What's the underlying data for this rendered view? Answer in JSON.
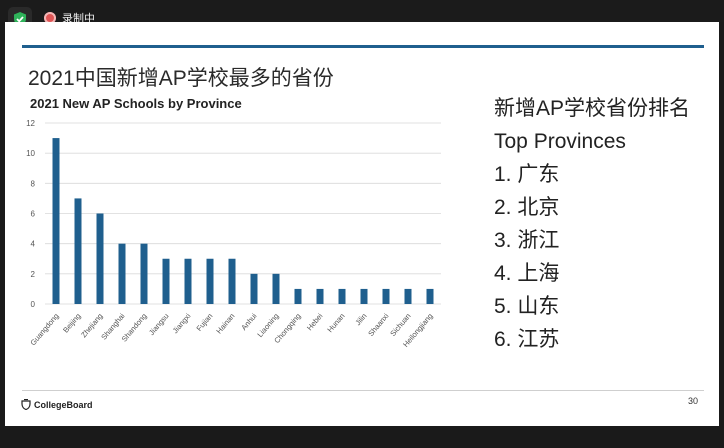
{
  "recording": {
    "label": "录制中"
  },
  "slide": {
    "title": "2021中国新增AP学校最多的省份",
    "page_number": "30",
    "logo_text": "CollegeBoard",
    "right_panel": {
      "heading_cn": "新增AP学校省份排名",
      "heading_en": "Top Provinces",
      "items": [
        "1. 广东",
        "2. 北京",
        "3. 浙江",
        "4. 上海",
        "5. 山东",
        "6. 江苏"
      ]
    }
  },
  "chart_data": {
    "type": "bar",
    "title": "2021 New AP Schools by Province",
    "categories": [
      "Guangdong",
      "Beijing",
      "Zhejiang",
      "Shanghai",
      "Shandong",
      "Jiangsu",
      "Jiangxi",
      "Fujian",
      "Hainan",
      "Anhui",
      "Liaoning",
      "Chongqing",
      "Hebei",
      "Hunan",
      "Jilin",
      "Shaanxi",
      "Sichuan",
      "Heilongjiang"
    ],
    "values": [
      11,
      7,
      6,
      4,
      4,
      3,
      3,
      3,
      3,
      2,
      2,
      1,
      1,
      1,
      1,
      1,
      1,
      1
    ],
    "ylim": [
      0,
      12
    ],
    "yticks": [
      0,
      2,
      4,
      6,
      8,
      10,
      12
    ],
    "grid": true,
    "bar_color": "#1f5f8e"
  }
}
